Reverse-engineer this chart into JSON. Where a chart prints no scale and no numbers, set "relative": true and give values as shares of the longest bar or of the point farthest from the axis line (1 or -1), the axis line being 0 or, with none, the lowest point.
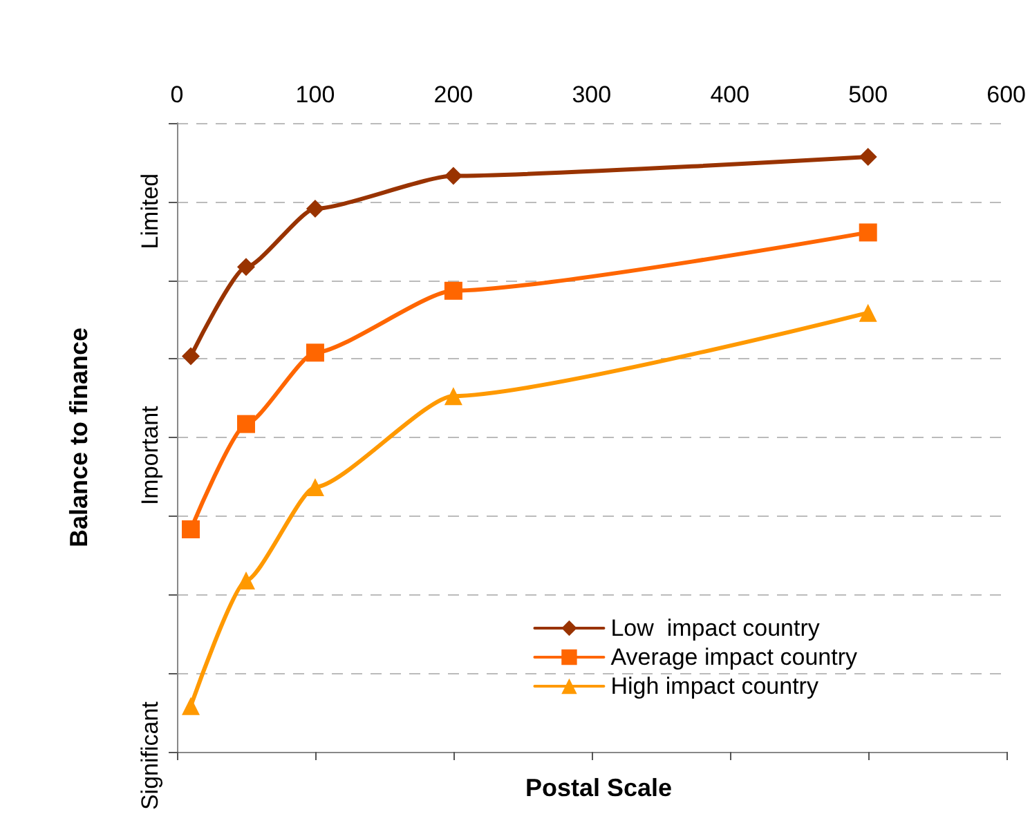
{
  "chart_data": {
    "type": "line",
    "xlabel": "Postal Scale",
    "ylabel": "Balance to finance",
    "xlim": [
      0,
      600
    ],
    "xticks": [
      0,
      100,
      200,
      300,
      400,
      500,
      600
    ],
    "relative": true,
    "annotations": [
      "Limited",
      "Important",
      "Significant"
    ],
    "x": [
      10,
      50,
      100,
      200,
      500
    ],
    "grid": "y",
    "legend": "bottom right",
    "line_style": "solid",
    "series": [
      {
        "name": "Low  impact country",
        "color": "#993300",
        "marker": "diamond",
        "values": [
          0.665,
          0.815,
          0.913,
          0.968,
          1
        ]
      },
      {
        "name": "Average impact country",
        "color": "#ff6600",
        "marker": "square",
        "values": [
          0.374,
          0.551,
          0.671,
          0.775,
          0.873
        ]
      },
      {
        "name": "High impact country",
        "color": "#ff9900",
        "marker": "triangle",
        "values": [
          0.077,
          0.288,
          0.445,
          0.598,
          0.738
        ]
      }
    ]
  }
}
